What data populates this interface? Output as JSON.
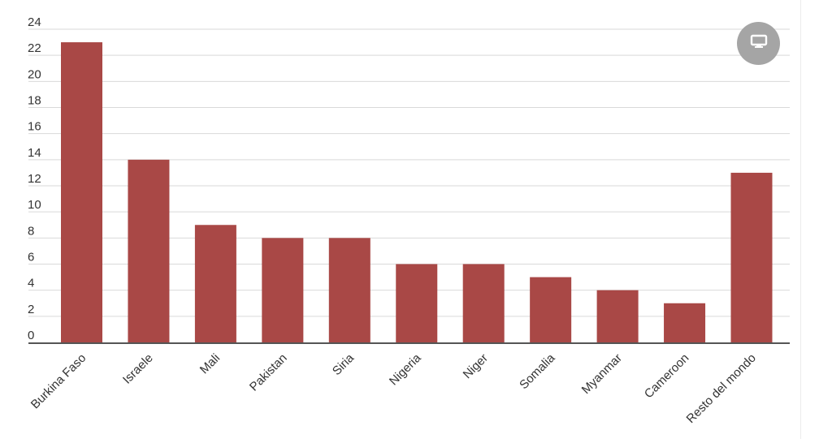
{
  "chart_data": {
    "type": "bar",
    "title": "",
    "xlabel": "",
    "ylabel": "",
    "categories": [
      "Burkina Faso",
      "Israele",
      "Mali",
      "Pakistan",
      "Siria",
      "Nigeria",
      "Niger",
      "Somalia",
      "Myanmar",
      "Cameroon",
      "Resto del mondo"
    ],
    "values": [
      23,
      14,
      9,
      8,
      8,
      6,
      6,
      5,
      4,
      3,
      13
    ],
    "ylim": [
      0,
      24
    ],
    "yticks": [
      "0",
      "2",
      "4",
      "6",
      "8",
      "10",
      "12",
      "14",
      "16",
      "18",
      "20",
      "22",
      "24"
    ],
    "grid": true,
    "legend": "none",
    "colors": {
      "bar": "#a94846",
      "grid": "#d9d9d9",
      "axis": "#555555"
    }
  },
  "controls": {
    "display_toggle_icon": "monitor-icon",
    "display_toggle_color": "#a5a5a5"
  }
}
